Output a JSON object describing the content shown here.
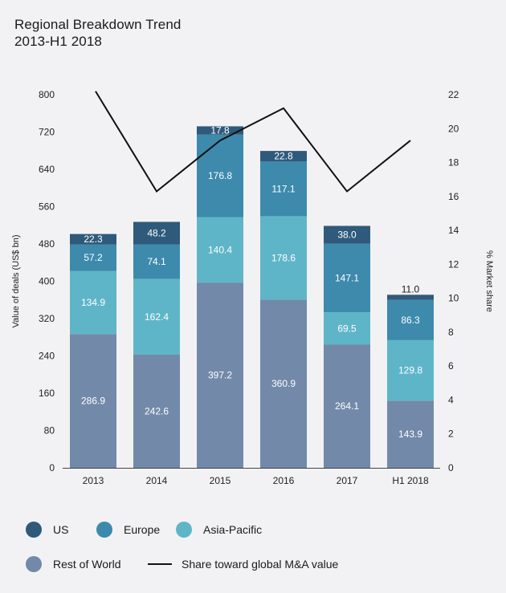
{
  "chart_data": {
    "type": "bar",
    "subtype": "stacked_with_line",
    "title": [
      "Regional Breakdown Trend",
      "2013-H1 2018"
    ],
    "categories": [
      "2013",
      "2014",
      "2015",
      "2016",
      "2017",
      "H1 2018"
    ],
    "series": [
      {
        "name": "Rest of World",
        "color": "#7289a9",
        "values": [
          286.9,
          242.6,
          397.2,
          360.9,
          264.1,
          143.9
        ],
        "labels": [
          "286.9",
          "242.6",
          "397.2",
          "360.9",
          "264.1",
          "143.9"
        ]
      },
      {
        "name": "Asia-Pacific",
        "color": "#5fb5c8",
        "values": [
          134.9,
          162.4,
          140.4,
          178.6,
          69.5,
          129.8
        ],
        "labels": [
          "134.9",
          "162.4",
          "140.4",
          "178.6",
          "69.5",
          "129.8"
        ]
      },
      {
        "name": "Europe",
        "color": "#3d8aad",
        "values": [
          57.2,
          74.1,
          176.8,
          117.1,
          147.1,
          86.3
        ],
        "labels": [
          "57.2",
          "74.1",
          "176.8",
          "117.1",
          "147.1",
          "86.3"
        ]
      },
      {
        "name": "US",
        "color": "#2f5a7b",
        "values": [
          22.3,
          48.2,
          17.8,
          22.8,
          38.0,
          11.0
        ],
        "labels": [
          "22.3",
          "48.2",
          "17.8",
          "22.8",
          "38.0",
          "11.0"
        ]
      }
    ],
    "line_series": {
      "name": "Share toward global M&A value",
      "color": "#111111",
      "axis": "right",
      "values": [
        22.2,
        16.3,
        19.3,
        21.2,
        16.3,
        19.3
      ]
    },
    "ylabel": "Value of deals (US$ bn)",
    "ylim": [
      0,
      800
    ],
    "yticks": [
      0,
      80,
      160,
      240,
      320,
      400,
      480,
      560,
      640,
      720,
      800
    ],
    "y2label": "% Market share",
    "y2lim": [
      0,
      22
    ],
    "y2ticks": [
      0,
      2,
      4,
      6,
      8,
      10,
      12,
      14,
      16,
      18,
      20,
      22
    ],
    "legend": {
      "placement": "bottom",
      "entries": [
        {
          "name": "US",
          "kind": "dot",
          "color": "#2f5a7b"
        },
        {
          "name": "Europe",
          "kind": "dot",
          "color": "#3d8aad"
        },
        {
          "name": "Asia-Pacific",
          "kind": "dot",
          "color": "#5fb5c8"
        },
        {
          "name": "Rest of World",
          "kind": "dot",
          "color": "#7289a9"
        },
        {
          "name": "Share toward global M&A value",
          "kind": "line",
          "color": "#111111"
        }
      ]
    }
  }
}
